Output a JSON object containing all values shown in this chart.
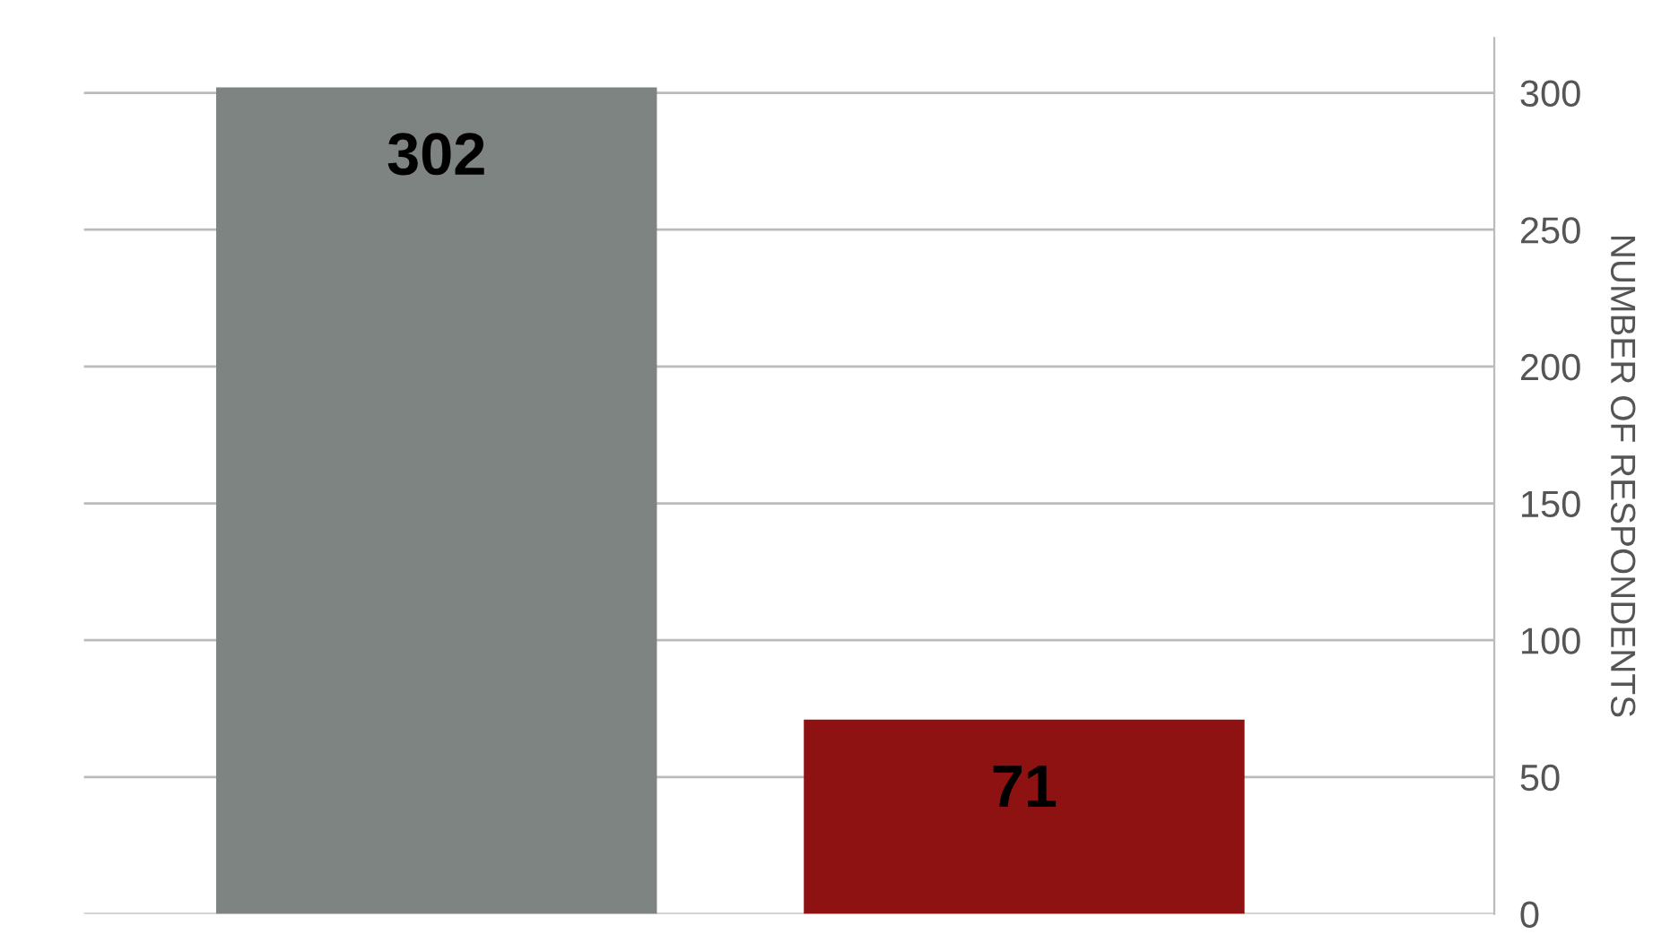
{
  "chart_data": {
    "type": "bar",
    "ylabel": "NUMBER OF RESPONDENTS",
    "categories": [
      null,
      null
    ],
    "values": [
      302,
      71
    ],
    "colors": [
      "#7e8482",
      "#8e1212"
    ],
    "ylim": [
      0,
      320
    ],
    "yticks": [
      0,
      50,
      100,
      150,
      200,
      250,
      300
    ],
    "grid": "y",
    "data_labels": true,
    "legend": false
  }
}
